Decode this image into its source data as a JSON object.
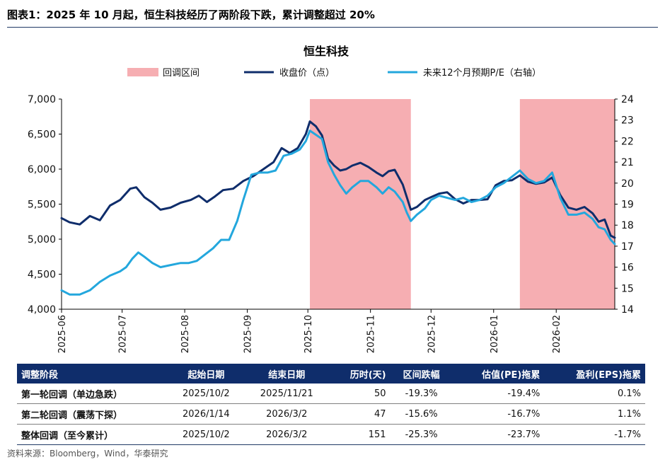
{
  "figure": {
    "title": "图表1：2025 年 10 月起，恒生科技经历了两阶段下跌，累计调整超过 20%",
    "source": "资料来源：Bloomberg，Wind，华泰研究"
  },
  "colors": {
    "shade": "#f6aeb2",
    "close": "#0f2d6b",
    "pe": "#23a7dd",
    "header_bg": "#0f2d6b"
  },
  "chart_data": {
    "type": "line",
    "title": "恒生科技",
    "legend": [
      "回调区间",
      "收盘价（点）",
      "未来12个月预期P/E（右轴）"
    ],
    "legend_position": "top",
    "x_ticks": [
      "2025-06",
      "2025-07",
      "2025-08",
      "2025-09",
      "2025-10",
      "2025-11",
      "2025-12",
      "2026-01",
      "2026-02"
    ],
    "y_left": {
      "ylim": [
        4000,
        7000
      ],
      "ticks": [
        "4,000",
        "4,500",
        "5,000",
        "5,500",
        "6,000",
        "6,500",
        "7,000"
      ]
    },
    "y_right": {
      "ylim": [
        14,
        24
      ],
      "ticks": [
        "14",
        "15",
        "16",
        "17",
        "18",
        "19",
        "20",
        "21",
        "22",
        "23",
        "24"
      ]
    },
    "shaded_ranges": [
      [
        "2025-10-02",
        "2025-11-21"
      ],
      [
        "2026-01-14",
        "2026-03-02"
      ]
    ],
    "series": [
      {
        "name": "收盘价（点）",
        "axis": "left",
        "points": [
          [
            "2025-06-01",
            5300
          ],
          [
            "2025-06-05",
            5240
          ],
          [
            "2025-06-10",
            5210
          ],
          [
            "2025-06-15",
            5330
          ],
          [
            "2025-06-20",
            5270
          ],
          [
            "2025-06-25",
            5480
          ],
          [
            "2025-06-30",
            5560
          ],
          [
            "2025-07-05",
            5720
          ],
          [
            "2025-07-08",
            5740
          ],
          [
            "2025-07-12",
            5600
          ],
          [
            "2025-07-16",
            5520
          ],
          [
            "2025-07-20",
            5420
          ],
          [
            "2025-07-25",
            5450
          ],
          [
            "2025-07-30",
            5520
          ],
          [
            "2025-08-04",
            5560
          ],
          [
            "2025-08-08",
            5620
          ],
          [
            "2025-08-12",
            5530
          ],
          [
            "2025-08-16",
            5610
          ],
          [
            "2025-08-20",
            5700
          ],
          [
            "2025-08-25",
            5720
          ],
          [
            "2025-08-30",
            5830
          ],
          [
            "2025-09-04",
            5900
          ],
          [
            "2025-09-09",
            6000
          ],
          [
            "2025-09-14",
            6100
          ],
          [
            "2025-09-18",
            6300
          ],
          [
            "2025-09-22",
            6230
          ],
          [
            "2025-09-26",
            6300
          ],
          [
            "2025-09-30",
            6500
          ],
          [
            "2025-10-02",
            6680
          ],
          [
            "2025-10-05",
            6610
          ],
          [
            "2025-10-08",
            6480
          ],
          [
            "2025-10-11",
            6150
          ],
          [
            "2025-10-14",
            6050
          ],
          [
            "2025-10-17",
            5980
          ],
          [
            "2025-10-20",
            6000
          ],
          [
            "2025-10-23",
            6050
          ],
          [
            "2025-10-27",
            6090
          ],
          [
            "2025-10-31",
            6030
          ],
          [
            "2025-11-04",
            5950
          ],
          [
            "2025-11-07",
            5900
          ],
          [
            "2025-11-10",
            5970
          ],
          [
            "2025-11-13",
            5990
          ],
          [
            "2025-11-17",
            5780
          ],
          [
            "2025-11-19",
            5600
          ],
          [
            "2025-11-21",
            5420
          ],
          [
            "2025-11-24",
            5460
          ],
          [
            "2025-11-28",
            5560
          ],
          [
            "2025-12-01",
            5600
          ],
          [
            "2025-12-05",
            5650
          ],
          [
            "2025-12-09",
            5670
          ],
          [
            "2025-12-13",
            5570
          ],
          [
            "2025-12-17",
            5510
          ],
          [
            "2025-12-21",
            5560
          ],
          [
            "2025-12-25",
            5560
          ],
          [
            "2025-12-29",
            5570
          ],
          [
            "2026-01-02",
            5770
          ],
          [
            "2026-01-06",
            5830
          ],
          [
            "2026-01-10",
            5840
          ],
          [
            "2026-01-14",
            5910
          ],
          [
            "2026-01-18",
            5820
          ],
          [
            "2026-01-22",
            5790
          ],
          [
            "2026-01-26",
            5810
          ],
          [
            "2026-01-30",
            5880
          ],
          [
            "2026-02-03",
            5630
          ],
          [
            "2026-02-07",
            5450
          ],
          [
            "2026-02-11",
            5420
          ],
          [
            "2026-02-15",
            5460
          ],
          [
            "2026-02-19",
            5370
          ],
          [
            "2026-02-22",
            5250
          ],
          [
            "2026-02-25",
            5280
          ],
          [
            "2026-02-28",
            5050
          ],
          [
            "2026-03-02",
            5020
          ]
        ]
      },
      {
        "name": "未来12个月预期P/E（右轴）",
        "axis": "right",
        "points": [
          [
            "2025-06-01",
            14.9
          ],
          [
            "2025-06-05",
            14.7
          ],
          [
            "2025-06-10",
            14.7
          ],
          [
            "2025-06-15",
            14.9
          ],
          [
            "2025-06-20",
            15.3
          ],
          [
            "2025-06-25",
            15.6
          ],
          [
            "2025-06-30",
            15.8
          ],
          [
            "2025-07-03",
            16.0
          ],
          [
            "2025-07-06",
            16.4
          ],
          [
            "2025-07-09",
            16.7
          ],
          [
            "2025-07-12",
            16.5
          ],
          [
            "2025-07-16",
            16.2
          ],
          [
            "2025-07-20",
            16.0
          ],
          [
            "2025-07-25",
            16.1
          ],
          [
            "2025-07-30",
            16.2
          ],
          [
            "2025-08-03",
            16.2
          ],
          [
            "2025-08-07",
            16.3
          ],
          [
            "2025-08-11",
            16.6
          ],
          [
            "2025-08-15",
            16.9
          ],
          [
            "2025-08-19",
            17.3
          ],
          [
            "2025-08-23",
            17.3
          ],
          [
            "2025-08-27",
            18.2
          ],
          [
            "2025-08-30",
            19.2
          ],
          [
            "2025-09-03",
            20.4
          ],
          [
            "2025-09-07",
            20.5
          ],
          [
            "2025-09-11",
            20.5
          ],
          [
            "2025-09-15",
            20.6
          ],
          [
            "2025-09-19",
            21.3
          ],
          [
            "2025-09-23",
            21.4
          ],
          [
            "2025-09-27",
            21.6
          ],
          [
            "2025-09-30",
            22.0
          ],
          [
            "2025-10-02",
            22.5
          ],
          [
            "2025-10-05",
            22.3
          ],
          [
            "2025-10-08",
            22.1
          ],
          [
            "2025-10-11",
            21.0
          ],
          [
            "2025-10-14",
            20.4
          ],
          [
            "2025-10-17",
            19.9
          ],
          [
            "2025-10-20",
            19.5
          ],
          [
            "2025-10-23",
            19.8
          ],
          [
            "2025-10-27",
            20.1
          ],
          [
            "2025-10-31",
            20.1
          ],
          [
            "2025-11-04",
            19.8
          ],
          [
            "2025-11-07",
            19.5
          ],
          [
            "2025-11-10",
            19.8
          ],
          [
            "2025-11-13",
            19.6
          ],
          [
            "2025-11-17",
            19.1
          ],
          [
            "2025-11-19",
            18.6
          ],
          [
            "2025-11-21",
            18.2
          ],
          [
            "2025-11-24",
            18.5
          ],
          [
            "2025-11-28",
            18.8
          ],
          [
            "2025-12-01",
            19.2
          ],
          [
            "2025-12-05",
            19.4
          ],
          [
            "2025-12-09",
            19.3
          ],
          [
            "2025-12-13",
            19.2
          ],
          [
            "2025-12-17",
            19.3
          ],
          [
            "2025-12-21",
            19.1
          ],
          [
            "2025-12-25",
            19.2
          ],
          [
            "2025-12-29",
            19.4
          ],
          [
            "2026-01-02",
            19.8
          ],
          [
            "2026-01-06",
            20.0
          ],
          [
            "2026-01-10",
            20.3
          ],
          [
            "2026-01-14",
            20.6
          ],
          [
            "2026-01-18",
            20.2
          ],
          [
            "2026-01-22",
            20.0
          ],
          [
            "2026-01-26",
            20.1
          ],
          [
            "2026-01-30",
            20.5
          ],
          [
            "2026-02-03",
            19.3
          ],
          [
            "2026-02-07",
            18.5
          ],
          [
            "2026-02-11",
            18.5
          ],
          [
            "2026-02-15",
            18.6
          ],
          [
            "2026-02-19",
            18.3
          ],
          [
            "2026-02-22",
            17.9
          ],
          [
            "2026-02-25",
            17.8
          ],
          [
            "2026-02-28",
            17.3
          ],
          [
            "2026-03-02",
            17.1
          ]
        ]
      }
    ]
  },
  "table": {
    "headers": [
      "调整阶段",
      "起始日期",
      "结束日期",
      "历时(天)",
      "区间跌幅",
      "估值(PE)拖累",
      "盈利(EPS)拖累"
    ],
    "rows": [
      [
        "第一轮回调（单边急跌）",
        "2025/10/2",
        "2025/11/21",
        "50",
        "-19.3%",
        "-19.4%",
        "0.1%"
      ],
      [
        "第二轮回调（震荡下探）",
        "2026/1/14",
        "2026/3/2",
        "47",
        "-15.6%",
        "-16.7%",
        "1.1%"
      ],
      [
        "整体回调（至今累计）",
        "2025/10/2",
        "2026/3/2",
        "151",
        "-25.3%",
        "-23.7%",
        "-1.7%"
      ]
    ]
  }
}
